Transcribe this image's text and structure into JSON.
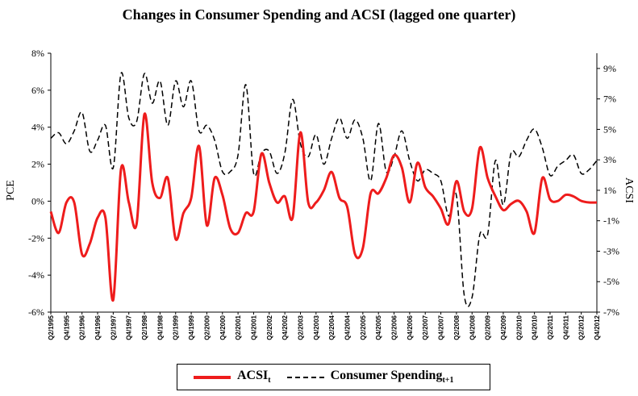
{
  "chart_data": {
    "type": "line",
    "title": "Changes in Consumer Spending and ACSI (lagged one quarter)",
    "y_left_label": "PCE",
    "y_right_label": "ACSI",
    "y_left_ticks": [
      "8%",
      "6%",
      "4%",
      "2%",
      "0%",
      "-2%",
      "-4%",
      "-6%"
    ],
    "y_right_ticks": [
      "9%",
      "7%",
      "5%",
      "3%",
      "1%",
      "-1%",
      "-3%",
      "-5%",
      "-7%"
    ],
    "ylim_left": [
      -0.06,
      0.08
    ],
    "ylim_right": [
      -0.07,
      0.1
    ],
    "x": [
      "Q2/1995",
      "Q3/1995",
      "Q4/1995",
      "Q1/1996",
      "Q2/1996",
      "Q3/1996",
      "Q4/1996",
      "Q1/1997",
      "Q2/1997",
      "Q3/1997",
      "Q4/1997",
      "Q1/1998",
      "Q2/1998",
      "Q3/1998",
      "Q4/1998",
      "Q1/1999",
      "Q2/1999",
      "Q3/1999",
      "Q4/1999",
      "Q1/2000",
      "Q2/2000",
      "Q3/2000",
      "Q4/2000",
      "Q1/2001",
      "Q2/2001",
      "Q3/2001",
      "Q4/2001",
      "Q1/2002",
      "Q2/2002",
      "Q3/2002",
      "Q4/2002",
      "Q1/2003",
      "Q2/2003",
      "Q3/2003",
      "Q4/2003",
      "Q1/2004",
      "Q2/2004",
      "Q3/2004",
      "Q4/2004",
      "Q1/2005",
      "Q2/2005",
      "Q3/2005",
      "Q4/2005",
      "Q1/2006",
      "Q2/2006",
      "Q3/2006",
      "Q4/2006",
      "Q1/2007",
      "Q2/2007",
      "Q3/2007",
      "Q4/2007",
      "Q1/2008",
      "Q2/2008",
      "Q3/2008",
      "Q4/2008",
      "Q1/2009",
      "Q2/2009",
      "Q3/2009",
      "Q4/2009",
      "Q1/2010",
      "Q2/2010",
      "Q3/2010",
      "Q4/2010",
      "Q1/2011",
      "Q2/2011",
      "Q3/2011",
      "Q4/2011",
      "Q1/2012",
      "Q2/2012",
      "Q3/2012",
      "Q4/2012"
    ],
    "x_tick_labels": [
      "Q2/1995",
      "Q4/1995",
      "Q2/1996",
      "Q4/1996",
      "Q2/1997",
      "Q4/1997",
      "Q2/1998",
      "Q4/1998",
      "Q2/1999",
      "Q4/1999",
      "Q2/2000",
      "Q4/2000",
      "Q2/2001",
      "Q4/2001",
      "Q2/2002",
      "Q4/2002",
      "Q2/2003",
      "Q4/2003",
      "Q2/2004",
      "Q4/2004",
      "Q2/2005",
      "Q4/2005",
      "Q2/2006",
      "Q4/2006",
      "Q2/2007",
      "Q4/2007",
      "Q2/2008",
      "Q4/2008",
      "Q2/2009",
      "Q4/2009",
      "Q2/2010",
      "Q4/2010",
      "Q2/2011",
      "Q4/2011",
      "Q2/2012",
      "Q4/2012"
    ],
    "series": [
      {
        "name": "ACSI",
        "axis": "right",
        "color": "#ee1c1c",
        "values": [
          -0.004,
          -0.018,
          0.002,
          0.002,
          -0.032,
          -0.025,
          -0.008,
          -0.008,
          -0.062,
          0.024,
          0.002,
          -0.012,
          0.06,
          0.015,
          0.005,
          0.018,
          -0.022,
          -0.005,
          0.005,
          0.039,
          -0.013,
          0.018,
          0.007,
          -0.015,
          -0.018,
          -0.005,
          -0.004,
          0.034,
          0.015,
          0.002,
          0.006,
          -0.008,
          0.048,
          0.002,
          0.002,
          0.01,
          0.022,
          0.005,
          -0.001,
          -0.032,
          -0.028,
          0.008,
          0.008,
          0.018,
          0.033,
          0.025,
          0.002,
          0.028,
          0.012,
          0.006,
          -0.002,
          -0.012,
          0.016,
          -0.004,
          -0.002,
          0.038,
          0.018,
          0.006,
          -0.003,
          0.001,
          0.003,
          -0.004,
          -0.018,
          0.018,
          0.004,
          0.003,
          0.007,
          0.006,
          0.003,
          0.002,
          0.002
        ]
      },
      {
        "name": "Consumer Spending",
        "axis": "left",
        "color": "#000000",
        "values": [
          0.034,
          0.037,
          0.031,
          0.038,
          0.048,
          0.027,
          0.033,
          0.041,
          0.018,
          0.069,
          0.045,
          0.043,
          0.069,
          0.053,
          0.065,
          0.041,
          0.065,
          0.051,
          0.065,
          0.038,
          0.041,
          0.033,
          0.016,
          0.016,
          0.025,
          0.063,
          0.015,
          0.026,
          0.027,
          0.015,
          0.026,
          0.055,
          0.031,
          0.024,
          0.036,
          0.02,
          0.034,
          0.045,
          0.034,
          0.044,
          0.034,
          0.011,
          0.042,
          0.016,
          0.024,
          0.038,
          0.022,
          0.011,
          0.017,
          0.015,
          0.011,
          -0.008,
          0.003,
          -0.051,
          -0.052,
          -0.018,
          -0.018,
          0.022,
          -0.002,
          0.026,
          0.024,
          0.033,
          0.039,
          0.029,
          0.014,
          0.019,
          0.022,
          0.025,
          0.015,
          0.017,
          0.022
        ]
      }
    ],
    "legend_position": "bottom",
    "grid": false
  },
  "legend": {
    "acsi_label": "ACSI",
    "acsi_sub": "t",
    "pce_label": "Consumer Spending",
    "pce_sub": "t+1"
  }
}
